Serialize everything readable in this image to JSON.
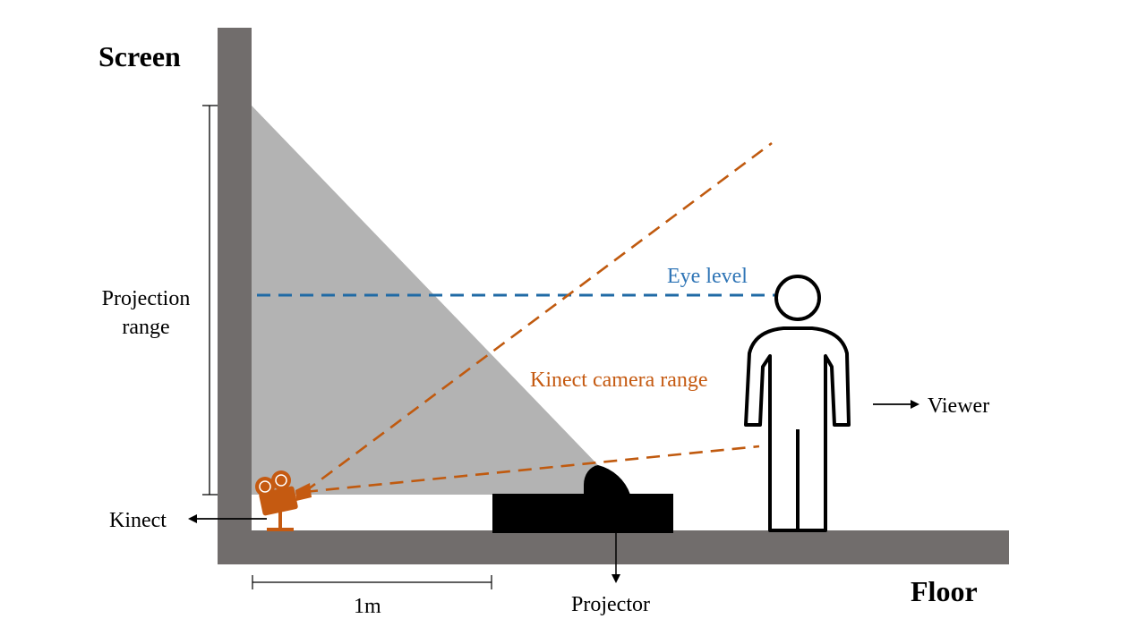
{
  "labels": {
    "screen": "Screen",
    "floor": "Floor",
    "projection_range_line1": "Projection",
    "projection_range_line2": "range",
    "eye_level": "Eye level",
    "kinect_camera_range": "Kinect camera range",
    "viewer": "Viewer",
    "kinect": "Kinect",
    "projector": "Projector",
    "distance": "1m"
  },
  "colors": {
    "wall": "#716d6c",
    "projection": "#b3b3b3",
    "eye_level": "#1f6aa5",
    "camera_range": "#c05a0f",
    "kinect_device": "#c55a11",
    "projector": "#000000",
    "eye_level_text": "#2f75b6",
    "camera_range_text": "#c55a11"
  },
  "icons": {
    "kinect": "movie-camera-icon",
    "viewer": "person-outline-icon",
    "projector": "projector-block-icon"
  }
}
